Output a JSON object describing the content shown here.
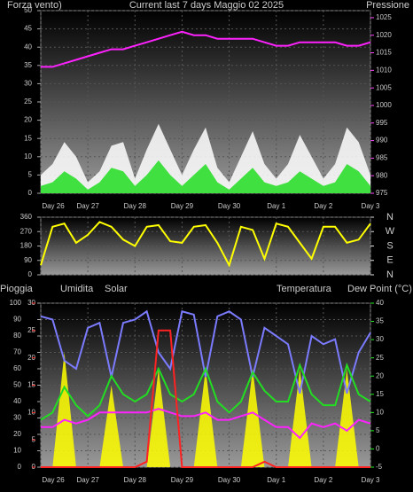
{
  "chart_data": [
    {
      "type": "line",
      "title": "Current last 7 days Maggio 02 2025",
      "y_label": "Forza vento)",
      "y2_label": "Pressione",
      "x": [
        0,
        0.25,
        0.5,
        0.75,
        1,
        1.25,
        1.5,
        1.75,
        2,
        2.25,
        2.5,
        2.75,
        3,
        3.25,
        3.5,
        3.75,
        4,
        4.25,
        4.5,
        4.75,
        5,
        5.25,
        5.5,
        5.75,
        6,
        6.25,
        6.5,
        6.75,
        7
      ],
      "xlim": [
        0,
        7
      ],
      "xticks": [
        {
          "value": 0,
          "label": "Day 26"
        },
        {
          "value": 1,
          "label": "Day 27"
        },
        {
          "value": 2,
          "label": "Day 28"
        },
        {
          "value": 3,
          "label": "Day 29"
        },
        {
          "value": 4,
          "label": "Day 30"
        },
        {
          "value": 5,
          "label": "Day 1"
        },
        {
          "value": 6,
          "label": "Day 2"
        },
        {
          "value": 7,
          "label": "Day 3"
        }
      ],
      "ylim": [
        0,
        50
      ],
      "yticks": [
        0,
        5,
        10,
        15,
        20,
        25,
        30,
        35,
        40,
        45,
        50
      ],
      "y2lim": [
        975,
        1027
      ],
      "y2ticks": [
        975,
        980,
        985,
        990,
        995,
        1000,
        1005,
        1010,
        1015,
        1020,
        1025
      ],
      "grid": true,
      "series": [
        {
          "color": "#ffffff",
          "style": "area",
          "values": [
            5,
            8,
            14,
            10,
            3,
            6,
            13,
            14,
            4,
            12,
            19,
            12,
            5,
            12,
            18,
            7,
            3,
            10,
            17,
            8,
            4,
            8,
            16,
            10,
            4,
            8,
            18,
            14,
            5
          ]
        },
        {
          "color": "#22dd22",
          "style": "area",
          "values": [
            2,
            3,
            6,
            4,
            1,
            3,
            7,
            6,
            2,
            5,
            9,
            5,
            2,
            5,
            8,
            3,
            1,
            4,
            7,
            3,
            2,
            3,
            6,
            4,
            2,
            3,
            8,
            6,
            2
          ]
        },
        {
          "color": "#ff22ff",
          "style": "line",
          "axis": "y2",
          "values": [
            1011,
            1011,
            1012,
            1013,
            1014,
            1015,
            1016,
            1016,
            1017,
            1018,
            1019,
            1020,
            1021,
            1020,
            1020,
            1019,
            1019,
            1019,
            1019,
            1018,
            1017,
            1017,
            1018,
            1018,
            1018,
            1018,
            1017,
            1017,
            1018
          ]
        }
      ]
    },
    {
      "type": "line",
      "x": [
        0,
        0.25,
        0.5,
        0.75,
        1,
        1.25,
        1.5,
        1.75,
        2,
        2.25,
        2.5,
        2.75,
        3,
        3.25,
        3.5,
        3.75,
        4,
        4.25,
        4.5,
        4.75,
        5,
        5.25,
        5.5,
        5.75,
        6,
        6.25,
        6.5,
        6.75,
        7
      ],
      "xlim": [
        0,
        7
      ],
      "ylim": [
        0,
        360
      ],
      "yticks": [
        0,
        90,
        180,
        270,
        360
      ],
      "y2lim": [
        0,
        360
      ],
      "y2ticks": [
        {
          "value": 360,
          "label": "N"
        },
        {
          "value": 270,
          "label": "W"
        },
        {
          "value": 180,
          "label": "S"
        },
        {
          "value": 90,
          "label": "E"
        },
        {
          "value": 0,
          "label": "N"
        }
      ],
      "grid": true,
      "series": [
        {
          "color": "#ffff00",
          "style": "line",
          "values": [
            60,
            300,
            320,
            200,
            250,
            330,
            300,
            220,
            180,
            300,
            310,
            210,
            200,
            300,
            310,
            200,
            60,
            300,
            280,
            100,
            320,
            300,
            200,
            100,
            300,
            300,
            200,
            220,
            320
          ]
        }
      ]
    },
    {
      "type": "line",
      "x": [
        0,
        0.25,
        0.5,
        0.75,
        1,
        1.25,
        1.5,
        1.75,
        2,
        2.25,
        2.5,
        2.75,
        3,
        3.25,
        3.5,
        3.75,
        4,
        4.25,
        4.5,
        4.75,
        5,
        5.25,
        5.5,
        5.75,
        6,
        6.25,
        6.5,
        6.75,
        7
      ],
      "xlim": [
        0,
        7
      ],
      "xticks": [
        {
          "value": 0,
          "label": "Day 26"
        },
        {
          "value": 1,
          "label": "Day 27"
        },
        {
          "value": 2,
          "label": "Day 28"
        },
        {
          "value": 3,
          "label": "Day 29"
        },
        {
          "value": 4,
          "label": "Day 30"
        },
        {
          "value": 5,
          "label": "Day 1"
        },
        {
          "value": 6,
          "label": "Day 2"
        },
        {
          "value": 7,
          "label": "Day 3"
        }
      ],
      "ylim": [
        0,
        100
      ],
      "yticks": [
        0,
        10,
        20,
        30,
        40,
        50,
        60,
        70,
        80,
        90,
        100
      ],
      "y3lim": [
        0,
        30
      ],
      "y3ticks": [
        0,
        5,
        10,
        15,
        20,
        25,
        30
      ],
      "y2lim": [
        -5,
        40
      ],
      "y2ticks": [
        -5,
        0,
        5,
        10,
        15,
        20,
        25,
        30,
        35,
        40
      ],
      "grid": true,
      "series": [
        {
          "name": "Solar",
          "color": "#ffff00",
          "style": "area",
          "values": [
            0,
            0,
            70,
            0,
            0,
            0,
            50,
            0,
            0,
            0,
            60,
            0,
            0,
            0,
            60,
            0,
            0,
            0,
            60,
            0,
            0,
            0,
            60,
            0,
            0,
            0,
            60,
            0,
            0
          ]
        },
        {
          "name": "Umidita",
          "color": "#7b7bff",
          "style": "line",
          "values": [
            92,
            90,
            65,
            60,
            85,
            88,
            55,
            88,
            90,
            95,
            70,
            60,
            95,
            93,
            55,
            92,
            95,
            90,
            55,
            85,
            80,
            75,
            45,
            80,
            75,
            78,
            45,
            70,
            82
          ]
        },
        {
          "name": "Temperatura",
          "color": "#22dd22",
          "style": "line",
          "axis": "y2",
          "values": [
            8,
            10,
            17,
            12,
            9,
            12,
            20,
            15,
            13,
            15,
            22,
            15,
            13,
            15,
            22,
            13,
            10,
            13,
            21,
            16,
            13,
            13,
            23,
            15,
            12,
            12,
            23,
            15,
            13
          ]
        },
        {
          "name": "Dew Point (°C)",
          "color": "#ff22ff",
          "style": "line",
          "axis": "y2",
          "values": [
            6,
            6,
            8,
            7,
            8,
            10,
            10,
            10,
            10,
            10,
            11,
            10,
            9,
            9,
            10,
            8,
            8,
            9,
            10,
            8,
            6,
            6,
            3,
            7,
            6,
            7,
            5,
            8,
            7
          ]
        },
        {
          "name": "Pioggia",
          "color": "#ff2222",
          "style": "line",
          "axis": "y3",
          "values": [
            0,
            0,
            0,
            0,
            0,
            0,
            0,
            0,
            0,
            1,
            25,
            25,
            0,
            0,
            0,
            0,
            0,
            0,
            0,
            1,
            0,
            0,
            0,
            0,
            0,
            0,
            0,
            0,
            0
          ]
        }
      ]
    }
  ]
}
